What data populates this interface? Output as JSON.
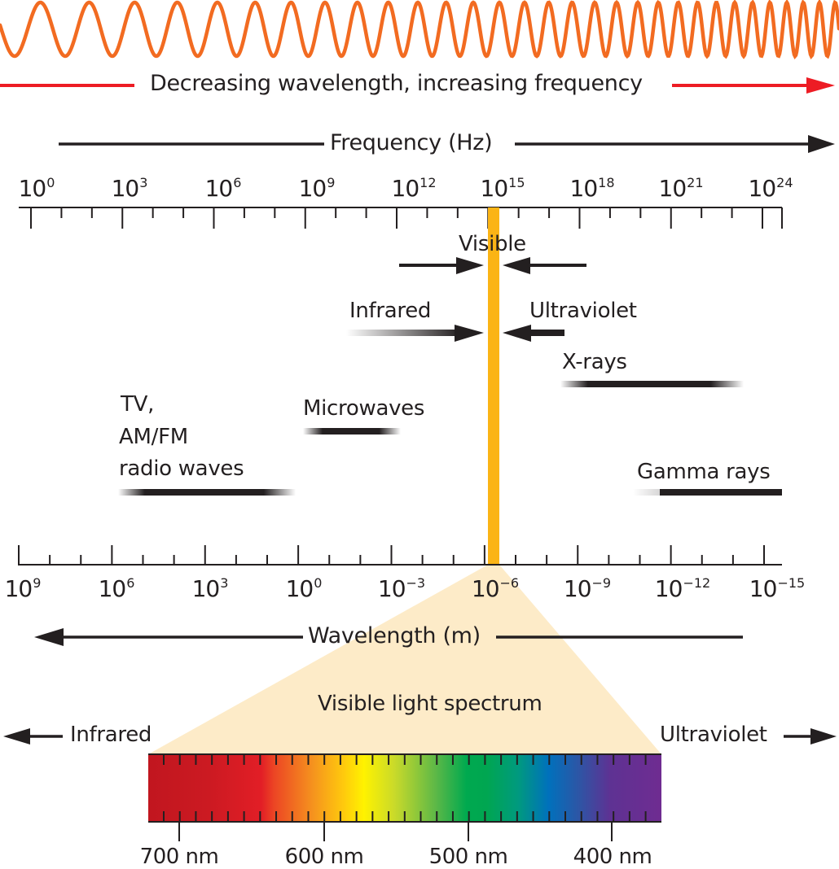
{
  "colors": {
    "wave": "#F26B21",
    "red_arrow": "#ED1C24",
    "ink": "#231F20",
    "visible_band": "#FBB415",
    "zoom_wedge": "#FDEBC8"
  },
  "header": {
    "caption": "Decreasing wavelength, increasing frequency"
  },
  "frequency_axis": {
    "title": "Frequency (Hz)",
    "ticks": [
      {
        "base": "10",
        "exp": "0"
      },
      {
        "base": "10",
        "exp": "3"
      },
      {
        "base": "10",
        "exp": "6"
      },
      {
        "base": "10",
        "exp": "9"
      },
      {
        "base": "10",
        "exp": "12"
      },
      {
        "base": "10",
        "exp": "15"
      },
      {
        "base": "10",
        "exp": "18"
      },
      {
        "base": "10",
        "exp": "21"
      },
      {
        "base": "10",
        "exp": "24"
      }
    ]
  },
  "wavelength_axis": {
    "title": "Wavelength (m)",
    "ticks": [
      {
        "base": "10",
        "exp": "9"
      },
      {
        "base": "10",
        "exp": "6"
      },
      {
        "base": "10",
        "exp": "3"
      },
      {
        "base": "10",
        "exp": "0"
      },
      {
        "base": "10",
        "exp": "−3"
      },
      {
        "base": "10",
        "exp": "−6"
      },
      {
        "base": "10",
        "exp": "−9"
      },
      {
        "base": "10",
        "exp": "−12"
      },
      {
        "base": "10",
        "exp": "−15"
      }
    ]
  },
  "bands": {
    "visible": "Visible",
    "infrared": "Infrared",
    "ultraviolet": "Ultraviolet",
    "xrays": "X-rays",
    "microwaves": "Microwaves",
    "radio_line1": "TV,",
    "radio_line2": "AM/FM",
    "radio_line3": "radio waves",
    "gamma": "Gamma rays"
  },
  "visible_spectrum": {
    "title": "Visible light spectrum",
    "left_label": "Infrared",
    "right_label": "Ultraviolet",
    "ticks": [
      "700 nm",
      "600 nm",
      "500 nm",
      "400 nm"
    ]
  },
  "chart_data": {
    "type": "diagram",
    "title": "Electromagnetic spectrum",
    "caption": "Decreasing wavelength, increasing frequency",
    "frequency_axis": {
      "label": "Frequency (Hz)",
      "scale": "log10",
      "range": [
        0,
        24
      ],
      "major_ticks_exp": [
        0,
        3,
        6,
        9,
        12,
        15,
        18,
        21,
        24
      ]
    },
    "wavelength_axis": {
      "label": "Wavelength (m)",
      "scale": "log10",
      "range": [
        9,
        -15
      ],
      "major_ticks_exp": [
        9,
        6,
        3,
        0,
        -3,
        -6,
        -9,
        -12,
        -15
      ]
    },
    "bands": [
      {
        "name": "TV, AM/FM radio waves",
        "wavelength_exp_range": [
          6,
          0
        ]
      },
      {
        "name": "Microwaves",
        "wavelength_exp_range": [
          0,
          -3
        ]
      },
      {
        "name": "Infrared",
        "wavelength_exp_range": [
          -1.5,
          -6
        ]
      },
      {
        "name": "Visible",
        "wavelength_exp_range": [
          -6,
          -6.3
        ]
      },
      {
        "name": "Ultraviolet",
        "wavelength_exp_range": [
          -6.3,
          -8
        ]
      },
      {
        "name": "X-rays",
        "wavelength_exp_range": [
          -8,
          -14
        ]
      },
      {
        "name": "Gamma rays",
        "wavelength_exp_range": [
          -11,
          -15
        ]
      }
    ],
    "visible_spectrum_nm": {
      "range": [
        740,
        380
      ],
      "labeled_ticks": [
        700,
        600,
        500,
        400
      ]
    }
  }
}
